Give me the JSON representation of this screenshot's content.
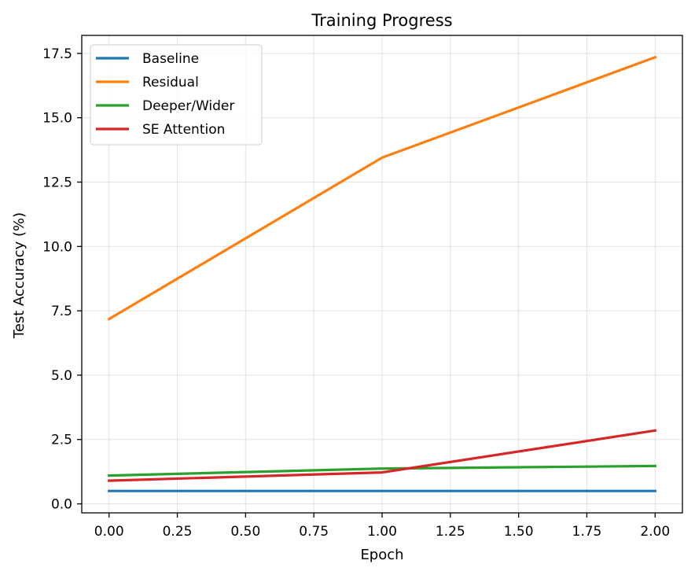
{
  "chart_data": {
    "type": "line",
    "title": "Training Progress",
    "xlabel": "Epoch",
    "ylabel": "Test Accuracy (%)",
    "x": [
      0,
      1,
      2
    ],
    "xlim": [
      -0.1,
      2.1
    ],
    "ylim": [
      -0.35,
      18.2
    ],
    "xticks": [
      0.0,
      0.25,
      0.5,
      0.75,
      1.0,
      1.25,
      1.5,
      1.75,
      2.0
    ],
    "xtick_labels": [
      "0.00",
      "0.25",
      "0.50",
      "0.75",
      "1.00",
      "1.25",
      "1.50",
      "1.75",
      "2.00"
    ],
    "yticks": [
      0.0,
      2.5,
      5.0,
      7.5,
      10.0,
      12.5,
      15.0,
      17.5
    ],
    "ytick_labels": [
      "0.0",
      "2.5",
      "5.0",
      "7.5",
      "10.0",
      "12.5",
      "15.0",
      "17.5"
    ],
    "grid": true,
    "legend_position": "top-left",
    "series": [
      {
        "name": "Baseline",
        "color": "#1f77b4",
        "values": [
          0.5,
          0.5,
          0.5
        ]
      },
      {
        "name": "Residual",
        "color": "#ff7f0e",
        "values": [
          7.18,
          13.45,
          17.35
        ]
      },
      {
        "name": "Deeper/Wider",
        "color": "#2ca02c",
        "values": [
          1.1,
          1.37,
          1.47
        ]
      },
      {
        "name": "SE Attention",
        "color": "#d62728",
        "values": [
          0.9,
          1.22,
          2.85
        ]
      }
    ]
  }
}
